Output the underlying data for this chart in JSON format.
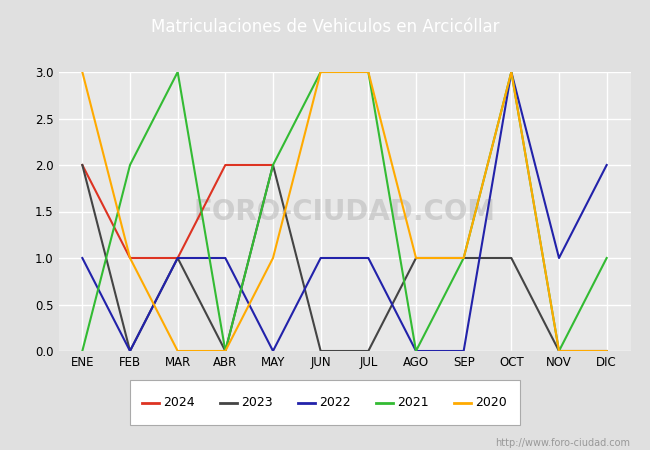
{
  "title": "Matriculaciones de Vehiculos en Arcicóllar",
  "months": [
    "ENE",
    "FEB",
    "MAR",
    "ABR",
    "MAY",
    "JUN",
    "JUL",
    "AGO",
    "SEP",
    "OCT",
    "NOV",
    "DIC"
  ],
  "series": {
    "2024": {
      "color": "#dd3322",
      "data": [
        2,
        1,
        1,
        2,
        2,
        null,
        null,
        null,
        null,
        null,
        null,
        null
      ]
    },
    "2023": {
      "color": "#444444",
      "data": [
        2,
        0,
        1,
        0,
        2,
        0,
        0,
        1,
        1,
        1,
        0,
        0
      ]
    },
    "2022": {
      "color": "#2222aa",
      "data": [
        1,
        0,
        1,
        1,
        0,
        1,
        1,
        0,
        0,
        3,
        1,
        2
      ]
    },
    "2021": {
      "color": "#33bb33",
      "data": [
        0,
        2,
        3,
        0,
        2,
        3,
        3,
        0,
        1,
        3,
        0,
        1
      ]
    },
    "2020": {
      "color": "#ffaa00",
      "data": [
        3,
        1,
        0,
        0,
        1,
        3,
        3,
        1,
        1,
        3,
        0,
        0
      ]
    }
  },
  "ylim": [
    0.0,
    3.0
  ],
  "yticks": [
    0.0,
    0.5,
    1.0,
    1.5,
    2.0,
    2.5,
    3.0
  ],
  "bg_color": "#e8e8e8",
  "fig_color": "#e0e0e0",
  "title_bg_color": "#5588cc",
  "title_color": "#ffffff",
  "title_fontsize": 12,
  "watermark_text": "FORO-CIUDAD.COM",
  "watermark_color": "#bbbbbb",
  "watermark_alpha": 0.6,
  "url_text": "http://www.foro-ciudad.com",
  "url_color": "#999999",
  "url_fontsize": 7,
  "grid_color": "#ffffff",
  "grid_linewidth": 1.0,
  "line_width": 1.5,
  "legend_years": [
    "2024",
    "2023",
    "2022",
    "2021",
    "2020"
  ],
  "tick_fontsize": 8.5
}
